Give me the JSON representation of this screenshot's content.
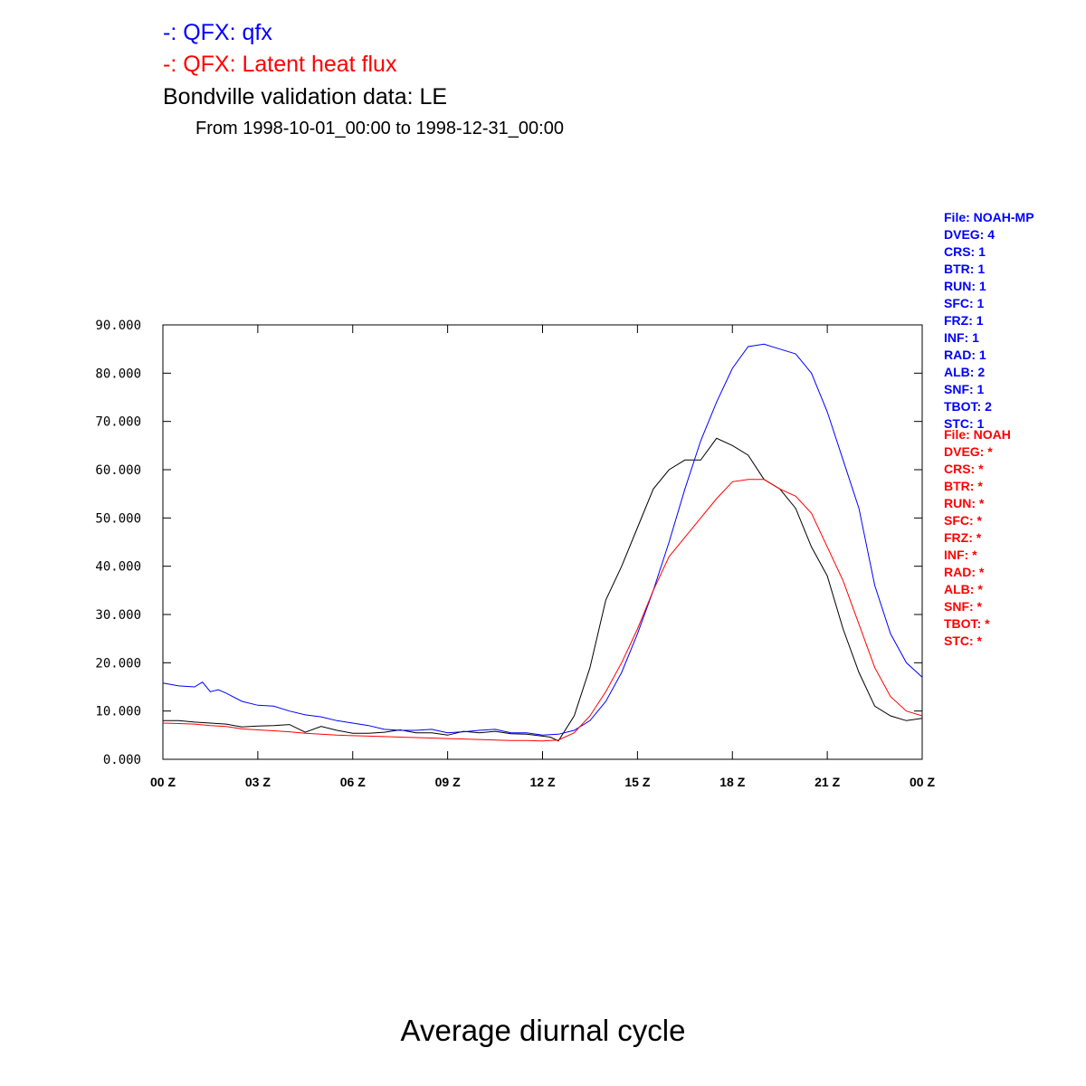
{
  "legend": [
    {
      "text": "-: QFX: qfx",
      "color": "#0000ff"
    },
    {
      "text": "-: QFX: Latent heat flux",
      "color": "#ff0000"
    }
  ],
  "title": "Bondville validation data: LE",
  "subtitle": "From 1998-10-01_00:00 to 1998-12-31_00:00",
  "footer": "Average diurnal cycle",
  "info_blue": {
    "color": "#0000ff",
    "lines": [
      "File: NOAH-MP",
      "DVEG: 4",
      "CRS: 1",
      "BTR: 1",
      "RUN: 1",
      "SFC: 1",
      "FRZ: 1",
      "INF: 1",
      "RAD: 1",
      "ALB: 2",
      "SNF: 1",
      "TBOT: 2",
      "STC: 1"
    ]
  },
  "info_red": {
    "color": "#ff0000",
    "lines": [
      "File: NOAH",
      "DVEG: *",
      "CRS: *",
      "BTR: *",
      "RUN: *",
      "SFC: *",
      "FRZ: *",
      "INF: *",
      "RAD: *",
      "ALB: *",
      "SNF: *",
      "TBOT: *",
      "STC: *"
    ]
  },
  "chart_data": {
    "type": "line",
    "xlim": [
      0,
      24
    ],
    "ylim": [
      0,
      90
    ],
    "x_ticks": [
      0,
      3,
      6,
      9,
      12,
      15,
      18,
      21,
      24
    ],
    "x_tick_labels": [
      "00 Z",
      "03 Z",
      "06 Z",
      "09 Z",
      "12 Z",
      "15 Z",
      "18 Z",
      "21 Z",
      "00 Z"
    ],
    "y_ticks": [
      0,
      10,
      20,
      30,
      40,
      50,
      60,
      70,
      80,
      90
    ],
    "y_tick_labels": [
      "0.000",
      "10.000",
      "20.000",
      "30.000",
      "40.000",
      "50.000",
      "60.000",
      "70.000",
      "80.000",
      "90.000"
    ],
    "series": [
      {
        "color": "#000000",
        "x": [
          0,
          0.5,
          1,
          1.5,
          2,
          2.5,
          3,
          3.5,
          4,
          4.5,
          5,
          5.5,
          6,
          6.5,
          7,
          7.5,
          8,
          8.5,
          9,
          9.5,
          10,
          10.5,
          11,
          11.5,
          12,
          12.25,
          12.5,
          13,
          13.5,
          14,
          14.5,
          15,
          15.5,
          16,
          16.5,
          17,
          17.5,
          18,
          18.5,
          19,
          19.5,
          20,
          20.5,
          21,
          21.5,
          22,
          22.5,
          23,
          23.5,
          24
        ],
        "y": [
          8,
          8,
          7.7,
          7.5,
          7.3,
          6.7,
          6.9,
          7,
          7.2,
          5.6,
          6.8,
          6,
          5.4,
          5.4,
          5.6,
          6.1,
          5.5,
          5.5,
          5,
          5.8,
          5.5,
          5.8,
          5.3,
          5.2,
          4.8,
          4.6,
          3.8,
          9,
          19,
          33,
          40,
          48,
          56,
          60,
          62,
          62,
          66.5,
          65,
          63,
          58,
          56,
          52,
          44,
          38,
          27,
          18,
          11,
          9,
          8,
          8.5
        ]
      },
      {
        "color": "#0000ff",
        "x": [
          0,
          0.5,
          1,
          1.25,
          1.5,
          1.75,
          2,
          2.5,
          3,
          3.5,
          4,
          4.5,
          5,
          5.5,
          6,
          6.5,
          7,
          7.5,
          8,
          8.5,
          9,
          9.5,
          10,
          10.5,
          11,
          11.5,
          12,
          12.5,
          13,
          13.5,
          14,
          14.5,
          15,
          15.5,
          16,
          16.5,
          17,
          17.5,
          18,
          18.5,
          19,
          19.5,
          20,
          20.5,
          21,
          21.5,
          22,
          22.5,
          23,
          23.5,
          24
        ],
        "y": [
          15.8,
          15.2,
          15,
          16,
          14,
          14.4,
          13.7,
          12,
          11.2,
          11,
          10,
          9.2,
          8.8,
          8,
          7.5,
          7,
          6.2,
          6,
          6,
          6.2,
          5.5,
          5.7,
          6,
          6.2,
          5.5,
          5.5,
          5,
          5.2,
          6,
          8,
          12,
          18,
          26,
          35,
          45,
          56,
          66,
          74,
          81,
          85.5,
          86,
          85,
          84,
          80,
          72,
          62,
          52,
          36,
          26,
          20,
          17
        ]
      },
      {
        "color": "#ff0000",
        "x": [
          0,
          0.5,
          1,
          1.5,
          2,
          2.5,
          3,
          3.5,
          4,
          4.5,
          5,
          5.5,
          6,
          6.5,
          7,
          7.5,
          8,
          8.5,
          9,
          9.5,
          10,
          10.5,
          11,
          11.5,
          12,
          12.5,
          13,
          13.5,
          14,
          14.5,
          15,
          15.5,
          16,
          16.5,
          17,
          17.5,
          18,
          18.5,
          19,
          19.5,
          20,
          20.5,
          21,
          21.5,
          22,
          22.5,
          23,
          23.5,
          24
        ],
        "y": [
          7.5,
          7.4,
          7.3,
          7,
          6.8,
          6.3,
          6.1,
          5.9,
          5.7,
          5.4,
          5.2,
          5,
          4.9,
          4.8,
          4.7,
          4.6,
          4.5,
          4.4,
          4.3,
          4.2,
          4.1,
          4,
          3.9,
          3.9,
          3.8,
          4,
          5.5,
          9,
          14,
          20,
          27,
          35,
          42,
          46,
          50,
          54,
          57.5,
          58,
          58,
          56,
          54.5,
          51,
          44,
          37,
          28,
          19,
          13,
          10,
          9
        ]
      }
    ]
  }
}
